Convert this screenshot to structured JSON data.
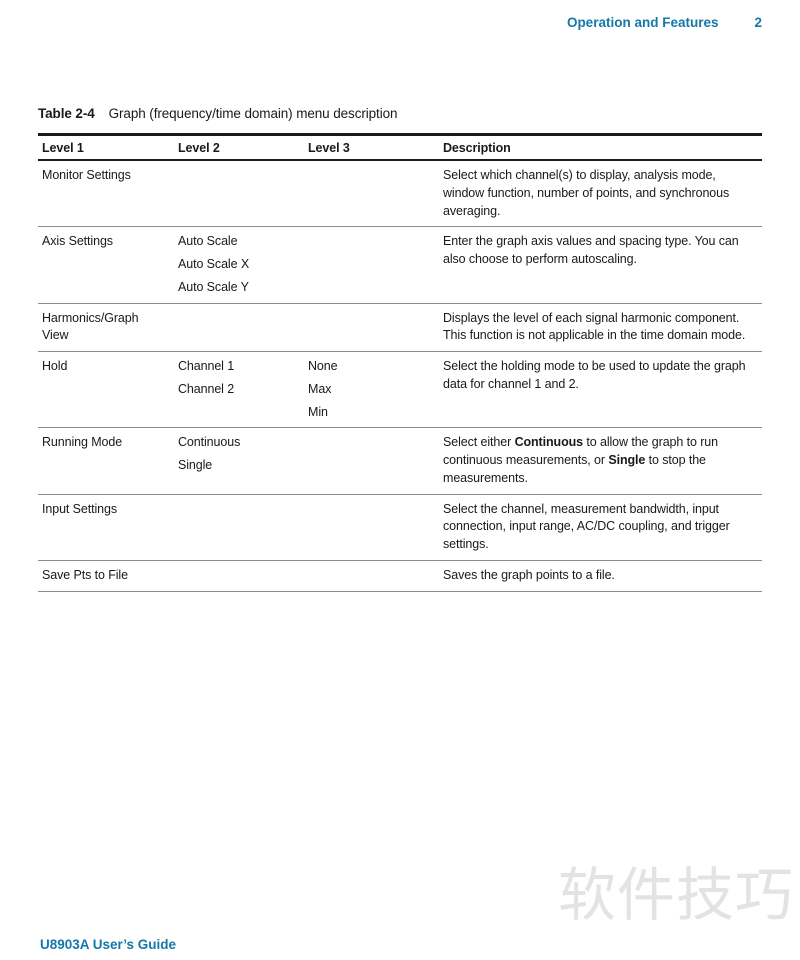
{
  "header": {
    "title": "Operation and Features",
    "page_number": "2"
  },
  "table": {
    "caption_label": "Table 2-4",
    "caption_text": "Graph (frequency/time domain) menu description",
    "columns": [
      "Level 1",
      "Level 2",
      "Level 3",
      "Description"
    ],
    "rows": [
      {
        "level1": "Monitor Settings",
        "level2": [],
        "level3": [],
        "description": [
          {
            "text": "Select which channel(s) to display, analysis mode, window function, number of points, and synchronous averaging."
          }
        ]
      },
      {
        "level1": "Axis Settings",
        "level2": [
          "Auto Scale",
          "Auto Scale X",
          "Auto Scale Y"
        ],
        "level3": [],
        "description": [
          {
            "text": "Enter the graph axis values and spacing type. You can also choose to perform autoscaling."
          }
        ]
      },
      {
        "level1": "Harmonics/Graph\nView",
        "level2": [],
        "level3": [],
        "description": [
          {
            "text": "Displays the level of each signal harmonic component. This function is not applicable in the time domain mode."
          }
        ]
      },
      {
        "level1": "Hold",
        "level2": [
          "Channel 1",
          "Channel 2"
        ],
        "level3": [
          "None",
          "Max",
          "Min"
        ],
        "description": [
          {
            "text": "Select the holding mode to be used to update the graph data for channel 1 and 2."
          }
        ]
      },
      {
        "level1": "Running Mode",
        "level2": [
          "Continuous",
          "Single"
        ],
        "level3": [],
        "description": [
          {
            "text": "Select either "
          },
          {
            "text": "Continuous",
            "bold": true
          },
          {
            "text": " to allow the graph to run continuous measurements, or "
          },
          {
            "text": "Single",
            "bold": true
          },
          {
            "text": " to stop the measurements."
          }
        ]
      },
      {
        "level1": "Input Settings",
        "level2": [],
        "level3": [],
        "description": [
          {
            "text": "Select the channel, measurement bandwidth, input connection, input range, AC/DC coupling, and trigger settings."
          }
        ]
      },
      {
        "level1": "Save Pts to File",
        "level2": [],
        "level3": [],
        "description": [
          {
            "text": "Saves the graph points to a file."
          }
        ]
      }
    ]
  },
  "watermark": "软件技巧",
  "footer": {
    "text": "U8903A User’s Guide"
  },
  "colors": {
    "accent": "#1478A8",
    "watermark": "#E3E3E3",
    "rule_dark": "#1A1A1A",
    "rule_light": "#8C8C8C",
    "text": "#1A1A1A"
  }
}
